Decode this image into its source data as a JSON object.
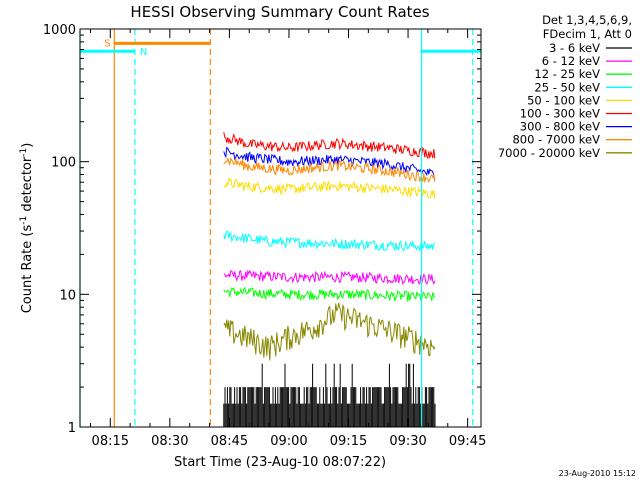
{
  "chart_data": {
    "type": "line",
    "title": "HESSI Observing Summary Count Rates",
    "xlabel": "Start Time (23-Aug-10 08:07:22)",
    "ylabel": "Count Rate (s",
    "ylabel_sup1": "-1",
    "ylabel_mid": " detector",
    "ylabel_sup2": "-1",
    "ylabel_end": ")",
    "y_scale": "log",
    "ylim": [
      1,
      1000
    ],
    "xlim_minutes": [
      7.37,
      108.37
    ],
    "x_ticks": [
      {
        "m": 15,
        "label": "08:15"
      },
      {
        "m": 30,
        "label": "08:30"
      },
      {
        "m": 45,
        "label": "08:45"
      },
      {
        "m": 60,
        "label": "09:00"
      },
      {
        "m": 75,
        "label": "09:15"
      },
      {
        "m": 90,
        "label": "09:30"
      },
      {
        "m": 105,
        "label": "09:45"
      }
    ],
    "y_ticks": [
      {
        "v": 1,
        "label": "1"
      },
      {
        "v": 10,
        "label": "10"
      },
      {
        "v": 100,
        "label": "100"
      },
      {
        "v": 1000,
        "label": "1000"
      }
    ],
    "legend_header": [
      "Det 1,3,4,5,6,9,",
      "FDecim 1, Att 0"
    ],
    "legend_position": "top-right",
    "data_start_min": 43.6,
    "data_end_min": 96.8,
    "series": [
      {
        "name": "3 - 6 keV",
        "color": "#000000",
        "values": [
          [
            43.6,
            1.0
          ],
          [
            96.8,
            2.0
          ]
        ],
        "kind": "noise-band"
      },
      {
        "name": "6 - 12 keV",
        "color": "#ff00ff",
        "values": [
          [
            43.6,
            14
          ],
          [
            60,
            13.5
          ],
          [
            75,
            13.5
          ],
          [
            96.8,
            13
          ]
        ]
      },
      {
        "name": "12 - 25 keV",
        "color": "#00ff00",
        "values": [
          [
            43.6,
            10.5
          ],
          [
            60,
            10
          ],
          [
            75,
            10
          ],
          [
            96.8,
            9.5
          ]
        ]
      },
      {
        "name": "25 - 50 keV",
        "color": "#00ffff",
        "values": [
          [
            43.6,
            28
          ],
          [
            55,
            25
          ],
          [
            75,
            24
          ],
          [
            96.8,
            23
          ]
        ]
      },
      {
        "name": "50 - 100 keV",
        "color": "#ffdd00",
        "values": [
          [
            43.6,
            70
          ],
          [
            50,
            65
          ],
          [
            60,
            62
          ],
          [
            72,
            66
          ],
          [
            85,
            62
          ],
          [
            96.8,
            57
          ]
        ]
      },
      {
        "name": "100 - 300 keV",
        "color": "#ff0000",
        "values": [
          [
            43.6,
            155
          ],
          [
            50,
            135
          ],
          [
            60,
            127
          ],
          [
            72,
            138
          ],
          [
            85,
            127
          ],
          [
            96.8,
            115
          ]
        ]
      },
      {
        "name": "300 - 800 keV",
        "color": "#0000ff",
        "values": [
          [
            43.6,
            120
          ],
          [
            50,
            108
          ],
          [
            60,
            100
          ],
          [
            72,
            104
          ],
          [
            85,
            96
          ],
          [
            96.8,
            80
          ]
        ]
      },
      {
        "name": "800 - 7000 keV",
        "color": "#ff8800",
        "values": [
          [
            43.6,
            105
          ],
          [
            50,
            92
          ],
          [
            60,
            86
          ],
          [
            72,
            94
          ],
          [
            85,
            85
          ],
          [
            96.8,
            74
          ]
        ]
      },
      {
        "name": "7000 - 20000 keV",
        "color": "#888800",
        "values": [
          [
            43.6,
            5.5
          ],
          [
            55,
            4.0
          ],
          [
            60,
            4.8
          ],
          [
            66,
            5.6
          ],
          [
            72,
            7.2
          ],
          [
            80,
            6.0
          ],
          [
            88,
            5.0
          ],
          [
            96.8,
            4.0
          ]
        ]
      }
    ],
    "annotations": {
      "saa_label": "S",
      "night_label": "N",
      "saa_start_min": 16.0,
      "saa_end_min": 40.2,
      "saa_level": 780,
      "night_segments": [
        {
          "start_min": 7.37,
          "end_min": 21.2,
          "level": 680
        },
        {
          "start_min": 93.4,
          "end_min": 108.37,
          "level": 680
        }
      ],
      "cyan_solid_min": [
        7.37,
        93.4
      ],
      "cyan_dashed_min": [
        21.2,
        106.3
      ],
      "orange_solid_min": [
        16.0
      ],
      "orange_dashed_min": [
        40.2
      ]
    }
  },
  "timestamp": "23-Aug-2010 15:12"
}
